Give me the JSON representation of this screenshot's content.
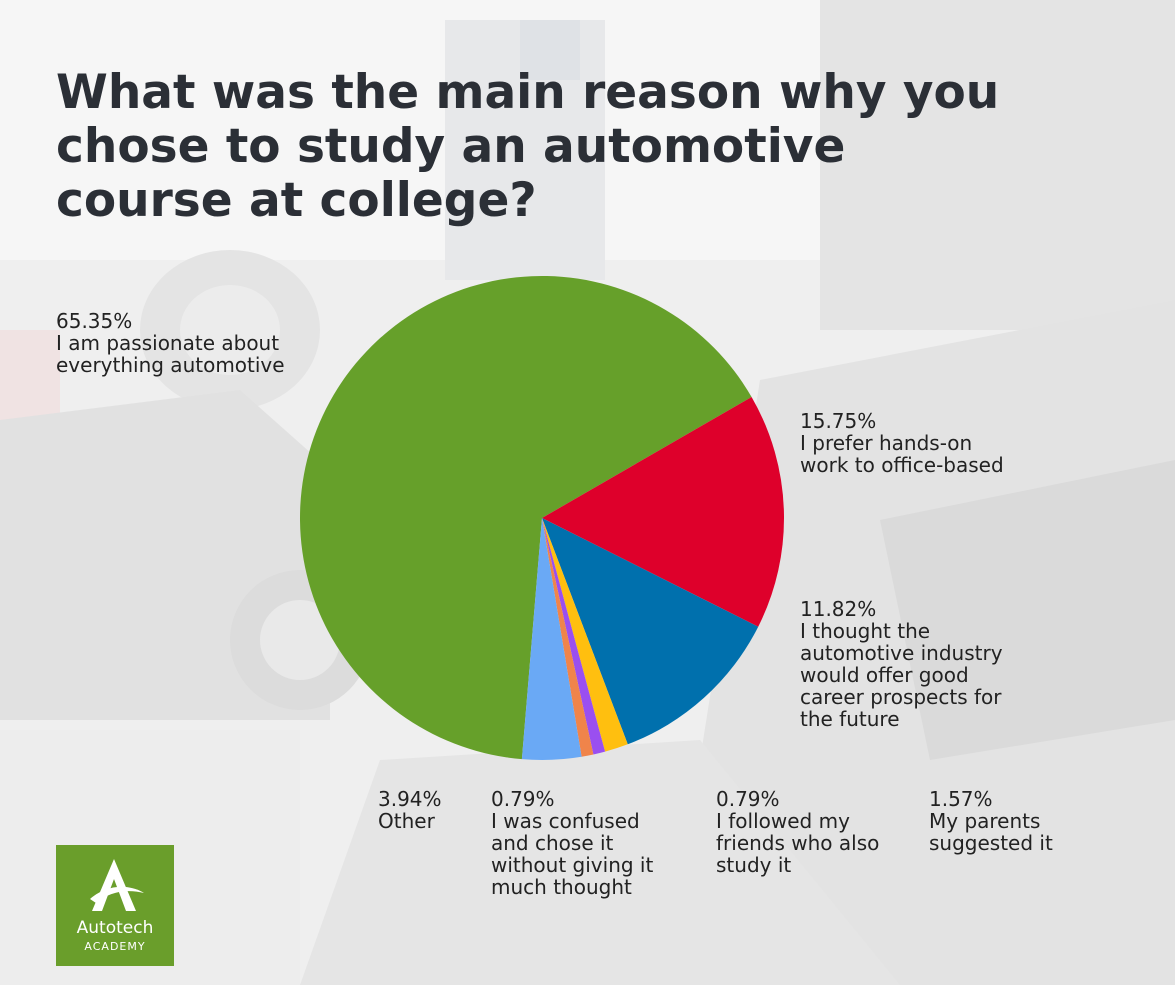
{
  "chart_data": {
    "type": "pie",
    "title_lines": [
      "What was the main reason why you",
      "chose to study an automotive",
      "course at college?"
    ],
    "slices": [
      {
        "value_label": "65.35%",
        "value": 65.35,
        "color": "#66a02a",
        "lines": [
          "I am passionate about",
          "everything automotive"
        ]
      },
      {
        "value_label": "15.75%",
        "value": 15.75,
        "color": "#de002b",
        "lines": [
          "I prefer hands-on",
          "work to office-based"
        ]
      },
      {
        "value_label": "11.82%",
        "value": 11.82,
        "color": "#0070ad",
        "lines": [
          "I thought the",
          "automotive industry",
          "would offer good",
          "career prospects for",
          "the future"
        ]
      },
      {
        "value_label": "1.57%",
        "value": 1.57,
        "color": "#ffbf0f",
        "lines": [
          "My parents",
          "suggested it"
        ]
      },
      {
        "value_label": "0.79%",
        "value": 0.79,
        "color": "#9a4ff0",
        "lines": [
          "I followed my",
          "friends who also",
          "study it"
        ]
      },
      {
        "value_label": "0.79%",
        "value": 0.79,
        "color": "#f0844a",
        "lines": [
          "I was confused",
          "and chose it",
          "without giving it",
          "much thought"
        ]
      },
      {
        "value_label": "3.94%",
        "value": 3.94,
        "color": "#6aa9f5",
        "lines": [
          "Other"
        ]
      }
    ]
  },
  "logo": {
    "name": "Autotech",
    "sub": "ACADEMY",
    "color": "#6a9e2b"
  }
}
